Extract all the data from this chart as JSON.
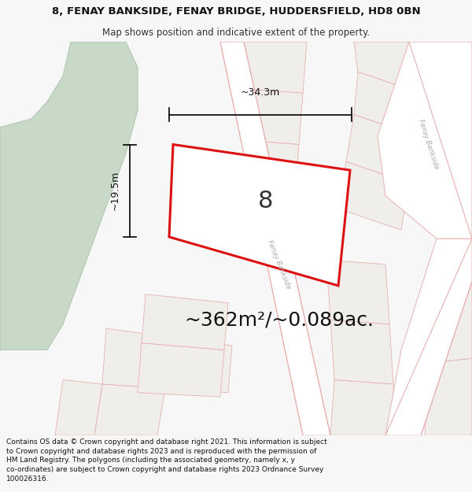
{
  "title_line1": "8, FENAY BANKSIDE, FENAY BRIDGE, HUDDERSFIELD, HD8 0BN",
  "title_line2": "Map shows position and indicative extent of the property.",
  "area_text": "~362m²/~0.089ac.",
  "property_number": "8",
  "dim_width": "~34.3m",
  "dim_height": "~19.5m",
  "footer_text": "Contains OS data © Crown copyright and database right 2021. This information is subject to Crown copyright and database rights 2023 and is reproduced with the permission of HM Land Registry. The polygons (including the associated geometry, namely x, y co-ordinates) are subject to Crown copyright and database rights 2023 Ordnance Survey 100026316.",
  "bg_color": "#f7f7f7",
  "map_bg": "#eeede8",
  "road_fill": "#ffffff",
  "road_edge": "#e8b0b0",
  "plot_fill": "#f0eeeb",
  "plot_edge": "#e8b0b0",
  "property_fill": "#ffffff",
  "property_edge": "#dd1111",
  "green_fill": "#c8d9c8",
  "green_edge": "#b0c8b0",
  "road_label_color": "#aaaaaa",
  "title_fontsize": 9.5,
  "subtitle_fontsize": 8.5,
  "area_fontsize": 18,
  "number_fontsize": 22,
  "dim_fontsize": 9,
  "footer_fontsize": 6.5
}
